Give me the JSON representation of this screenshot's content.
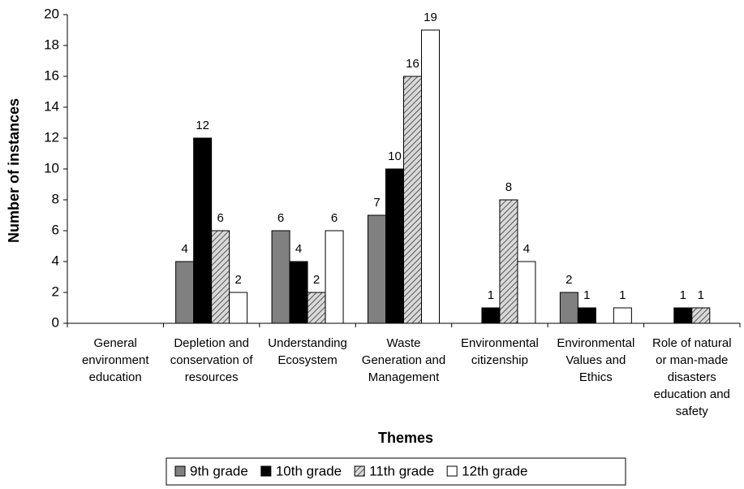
{
  "chart_data": {
    "type": "bar",
    "x_label": "Themes",
    "y_label": "Number of instances",
    "categories": [
      "General environment education",
      "Depletion and conservation of resources",
      "Understanding Ecosystem",
      "Waste Generation and Management",
      "Environmental citizenship",
      "Environmental Values and Ethics",
      "Role of natural or man-made disasters education and safety"
    ],
    "series": [
      {
        "name": "9th grade",
        "color": "#808080",
        "values": [
          0,
          4,
          6,
          7,
          0,
          2,
          0
        ]
      },
      {
        "name": "10th grade",
        "color": "#000000",
        "values": [
          0,
          12,
          4,
          10,
          1,
          1,
          1
        ]
      },
      {
        "name": "11th grade",
        "color": "#d9d9d9",
        "pattern": "hatch",
        "values": [
          0,
          6,
          2,
          16,
          8,
          0,
          1
        ]
      },
      {
        "name": "12th grade",
        "color": "#ffffff",
        "values": [
          0,
          2,
          6,
          19,
          4,
          1,
          0
        ]
      }
    ],
    "ylim": [
      0,
      20
    ],
    "yticks": [
      0,
      2,
      4,
      6,
      8,
      10,
      12,
      14,
      16,
      18,
      20
    ],
    "grid": false,
    "legend": "bottom"
  }
}
